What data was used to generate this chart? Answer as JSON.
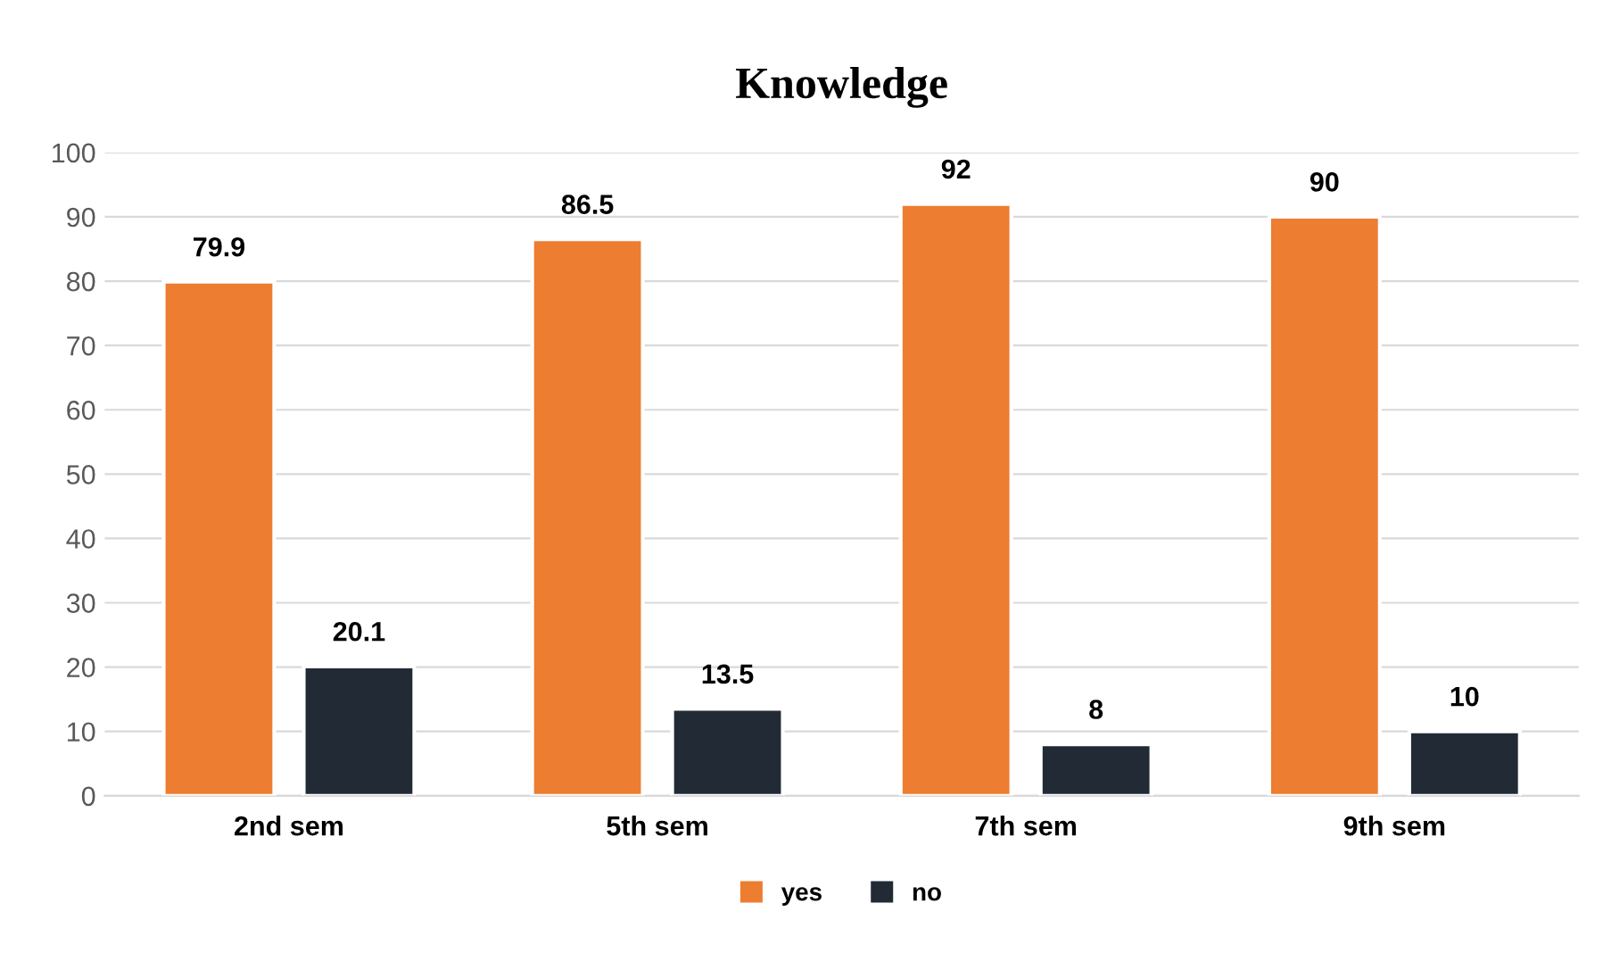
{
  "chart_data": {
    "type": "bar",
    "title": "Knowledge",
    "categories": [
      "2nd sem",
      "5th sem",
      "7th sem",
      "9th sem"
    ],
    "series": [
      {
        "name": "yes",
        "color": "#ed7d31",
        "values": [
          79.9,
          86.5,
          92,
          90
        ]
      },
      {
        "name": "no",
        "color": "#222a35",
        "values": [
          20.1,
          13.5,
          8,
          10
        ]
      }
    ],
    "ylim": [
      0,
      100
    ],
    "yticks": [
      0,
      10,
      20,
      30,
      40,
      50,
      60,
      70,
      80,
      90,
      100
    ],
    "grid": "y",
    "legend": "bottom",
    "data_labels": true
  }
}
